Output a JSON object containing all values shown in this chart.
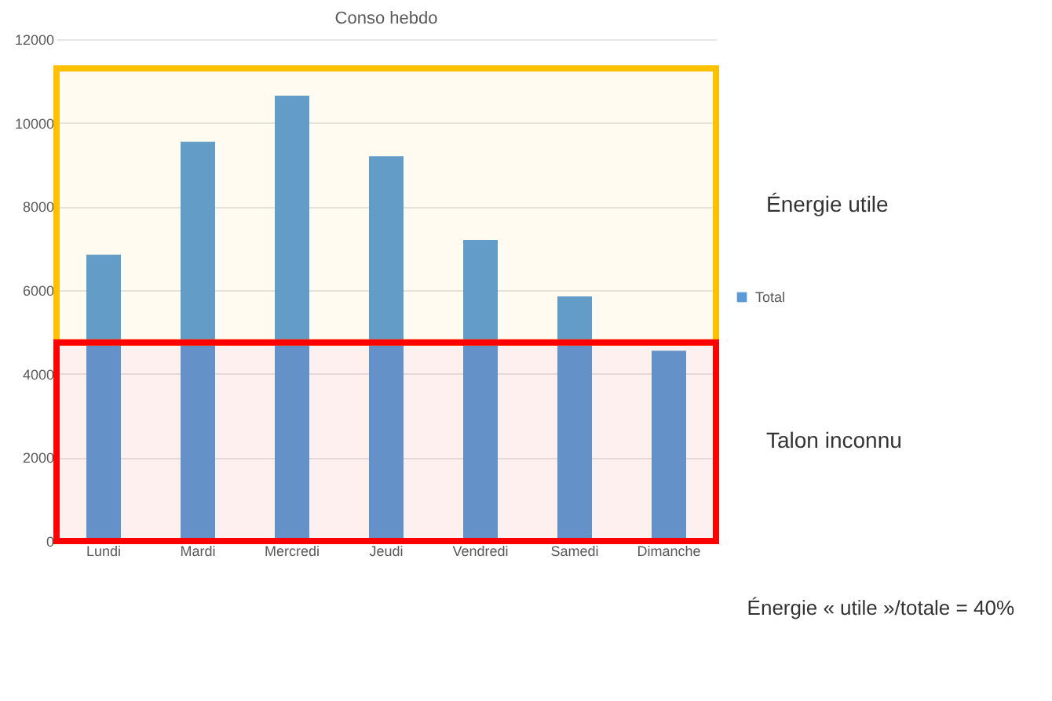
{
  "chart_data": {
    "type": "bar",
    "title": "Conso hebdo",
    "categories": [
      "Lundi",
      "Mardi",
      "Mercredi",
      "Jeudi",
      "Vendredi",
      "Samedi",
      "Dimanche"
    ],
    "series": [
      {
        "name": "Total",
        "color": "#5b9bd5",
        "values": [
          6850,
          9550,
          10650,
          9200,
          7200,
          5850,
          4550
        ]
      }
    ],
    "ylim": [
      0,
      12000
    ],
    "yticks": [
      0,
      2000,
      4000,
      6000,
      8000,
      10000,
      12000
    ],
    "grid": "y",
    "legend": "right",
    "bands": [
      {
        "axis": "y",
        "from": 4750,
        "to": 11300,
        "label": "Énergie utile",
        "color": "#ffc000"
      },
      {
        "axis": "y",
        "from": 0,
        "to": 4750,
        "label": "Talon inconnu",
        "color": "#ff0000"
      }
    ],
    "annotations": [
      "Énergie « utile »/totale = 40%"
    ]
  }
}
